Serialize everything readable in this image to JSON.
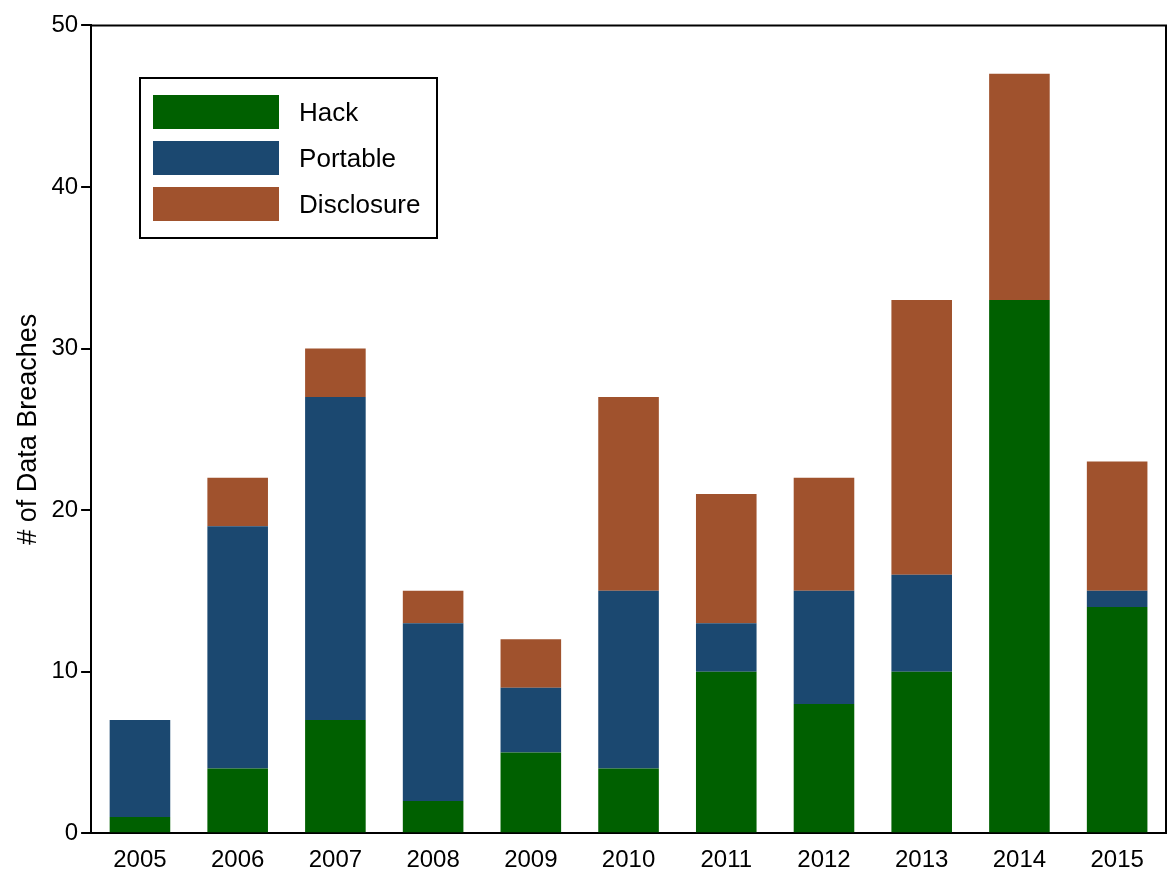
{
  "chart_data": {
    "type": "bar",
    "ylabel": "# of Data Breaches",
    "categories": [
      "2005",
      "2006",
      "2007",
      "2008",
      "2009",
      "2010",
      "2011",
      "2012",
      "2013",
      "2014",
      "2015"
    ],
    "series": [
      {
        "name": "Hack",
        "color": "#006000",
        "values": [
          1,
          4,
          7,
          2,
          5,
          4,
          10,
          8,
          10,
          33,
          14
        ]
      },
      {
        "name": "Portable",
        "color": "#1b4870",
        "values": [
          6,
          15,
          20,
          11,
          4,
          11,
          3,
          7,
          6,
          0,
          1
        ]
      },
      {
        "name": "Disclosure",
        "color": "#a0522d",
        "values": [
          0,
          3,
          3,
          2,
          3,
          12,
          8,
          7,
          17,
          14,
          8
        ]
      }
    ],
    "stacked": true,
    "ylim": [
      0,
      50
    ],
    "yticks": [
      0,
      10,
      20,
      30,
      40,
      50
    ],
    "grid": false,
    "legend": "top left"
  }
}
